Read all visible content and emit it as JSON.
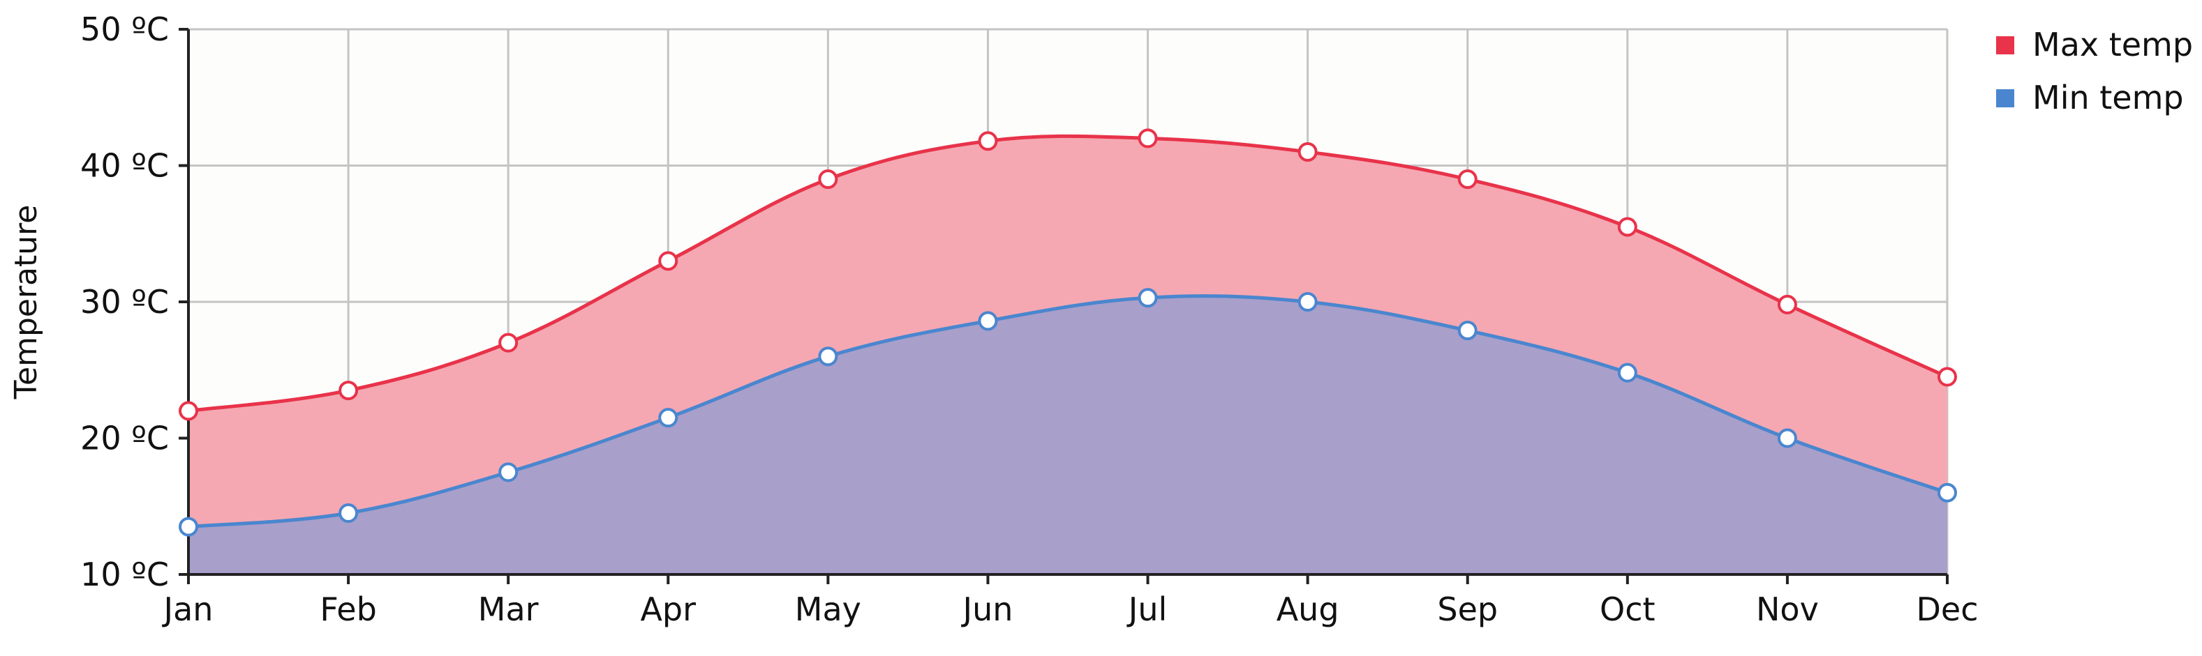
{
  "chart_data": {
    "type": "area",
    "title": "",
    "xlabel": "",
    "ylabel": "Temperature",
    "categories": [
      "Jan",
      "Feb",
      "Mar",
      "Apr",
      "May",
      "Jun",
      "Jul",
      "Aug",
      "Sep",
      "Oct",
      "Nov",
      "Dec"
    ],
    "yticks": [
      "10 ºC",
      "20 ºC",
      "30 ºC",
      "40 ºC",
      "50 ºC"
    ],
    "ylim": [
      10,
      50
    ],
    "grid": true,
    "legend_position": "top-right",
    "series": [
      {
        "name": "Max temp",
        "values": [
          22,
          23.5,
          27,
          33,
          39,
          41.8,
          42,
          41,
          39,
          35.5,
          29.8,
          24.5
        ],
        "line_color": "#e8334a",
        "fill_color": "#f5a8b2"
      },
      {
        "name": "Min temp",
        "values": [
          13.5,
          14.5,
          17.5,
          21.5,
          26,
          28.6,
          30.3,
          30,
          27.9,
          24.8,
          20,
          16
        ],
        "line_color": "#4a86cf",
        "fill_color": "#a89fca"
      }
    ]
  }
}
